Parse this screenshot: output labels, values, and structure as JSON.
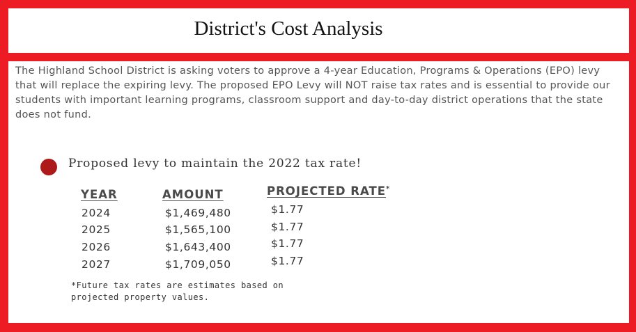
{
  "title": "District's Cost Analysis",
  "intro": "The Highland School District is asking voters to approve a 4-year Education, Programs & Operations (EPO) levy that will replace the expiring levy. The proposed EPO Levy will NOT raise tax rates and is essential to provide our students with important learning programs, classroom support and day-to-day district operations that the state does not fund.",
  "section_heading": "Proposed levy to maintain the 2022 tax rate!",
  "table": {
    "headers": {
      "year": "YEAR",
      "amount": "AMOUNT",
      "rate": "PROJECTED RATE",
      "rate_marker": "*"
    },
    "rows": [
      {
        "year": "2024",
        "amount": "$1,469,480",
        "rate": "$1.77"
      },
      {
        "year": "2025",
        "amount": "$1,565,100",
        "rate": "$1.77"
      },
      {
        "year": "2026",
        "amount": "$1,643,400",
        "rate": "$1.77"
      },
      {
        "year": "2027",
        "amount": "$1,709,050",
        "rate": "$1.77"
      }
    ]
  },
  "footnote": "*Future tax rates are estimates based on projected property values.",
  "colors": {
    "frame": "#ed1c24",
    "bullet": "#ad1a1a"
  }
}
